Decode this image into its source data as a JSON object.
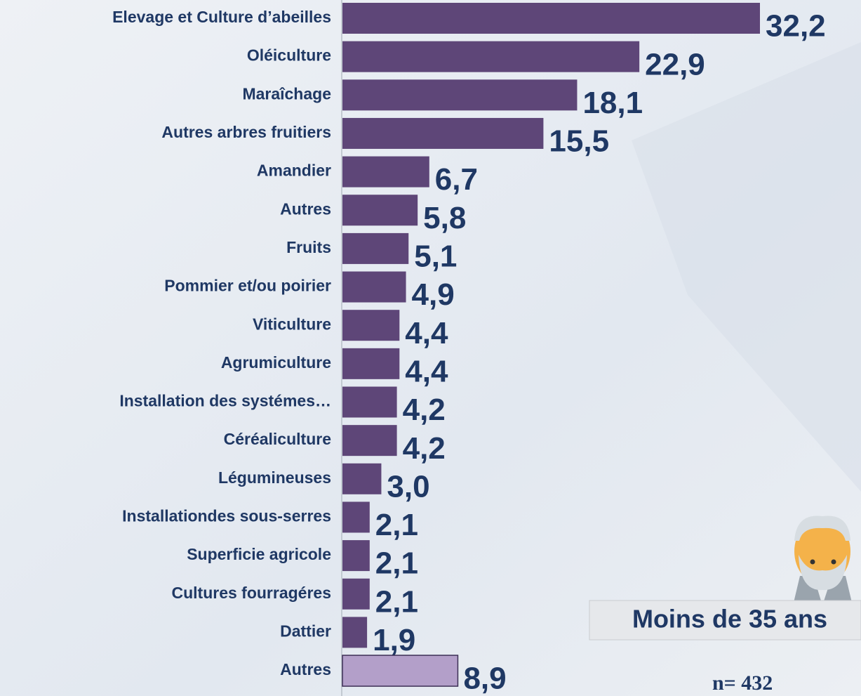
{
  "chart_data": {
    "type": "bar",
    "orientation": "horizontal",
    "categories": [
      "Elevage et Culture d’abeilles",
      "Oléiculture",
      "Maraîchage",
      "Autres arbres fruitiers",
      "Amandier",
      "Autres",
      "Fruits",
      "Pommier et/ou poirier",
      "Viticulture",
      "Agrumiculture",
      "Installation des systémes…",
      "Céréaliculture",
      "Légumineuses",
      "Installationdes sous-serres",
      "Superficie agricole",
      "Cultures fourragéres",
      "Dattier",
      "Autres"
    ],
    "values": [
      32.2,
      22.9,
      18.1,
      15.5,
      6.7,
      5.8,
      5.1,
      4.9,
      4.4,
      4.4,
      4.2,
      4.2,
      3.0,
      2.1,
      2.1,
      2.1,
      1.9,
      8.9
    ],
    "value_labels": [
      "32,2",
      "22,9",
      "18,1",
      "15,5",
      "6,7",
      "5,8",
      "5,1",
      "4,9",
      "4,4",
      "4,4",
      "4,2",
      "4,2",
      "3,0",
      "2,1",
      "2,1",
      "2,1",
      "1,9",
      "8,9"
    ],
    "colors": [
      "#5e4678",
      "#5e4678",
      "#5e4678",
      "#5e4678",
      "#5e4678",
      "#5e4678",
      "#5e4678",
      "#5e4678",
      "#5e4678",
      "#5e4678",
      "#5e4678",
      "#5e4678",
      "#5e4678",
      "#5e4678",
      "#5e4678",
      "#5e4678",
      "#5e4678",
      "#b39fc9"
    ],
    "badge": "Moins de 35 ans",
    "sample": "n= 432"
  }
}
